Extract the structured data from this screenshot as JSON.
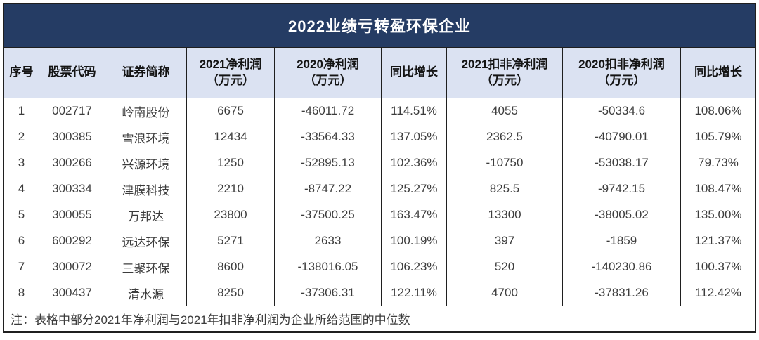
{
  "title": "2022业绩亏转盈环保企业",
  "table": {
    "columns": [
      "序号",
      "股票代码",
      "证券简称",
      "2021净利润\n（万元）",
      "2020净利润\n（万元）",
      "同比增长",
      "2021扣非净利润\n（万元）",
      "2020扣非净利润\n（万元）",
      "同比增长"
    ],
    "rows": [
      [
        "1",
        "002717",
        "岭南股份",
        "6675",
        "-46011.72",
        "114.51%",
        "4055",
        "-50334.6",
        "108.06%"
      ],
      [
        "2",
        "300385",
        "雪浪环境",
        "12434",
        "-33564.33",
        "137.05%",
        "2362.5",
        "-40790.01",
        "105.79%"
      ],
      [
        "3",
        "300266",
        "兴源环境",
        "1250",
        "-52895.13",
        "102.36%",
        "-10750",
        "-53038.17",
        "79.73%"
      ],
      [
        "4",
        "300334",
        "津膜科技",
        "2210",
        "-8747.22",
        "125.27%",
        "825.5",
        "-9742.15",
        "108.47%"
      ],
      [
        "5",
        "300055",
        "万邦达",
        "23800",
        "-37500.25",
        "163.47%",
        "13300",
        "-38005.02",
        "135.00%"
      ],
      [
        "6",
        "600292",
        "远达环保",
        "5271",
        "2633",
        "100.19%",
        "397",
        "-1859",
        "121.37%"
      ],
      [
        "7",
        "300072",
        "三聚环保",
        "8600",
        "-138016.05",
        "106.23%",
        "520",
        "-140230.86",
        "100.37%"
      ],
      [
        "8",
        "300437",
        "清水源",
        "8250",
        "-37306.31",
        "122.11%",
        "4700",
        "-37831.26",
        "112.42%"
      ]
    ],
    "footnote": "注：表格中部分2021年净利润与2021年扣非净利润为企业所给范围的中位数"
  },
  "colors": {
    "title_bg": "#253C64",
    "title_text": "#FFFFFF",
    "header_bg": "#DBE2F2",
    "header_text": "#141414",
    "body_text": "#3C3C3C",
    "border": "#1F1F1F",
    "row_bg": "#FFFFFF"
  }
}
